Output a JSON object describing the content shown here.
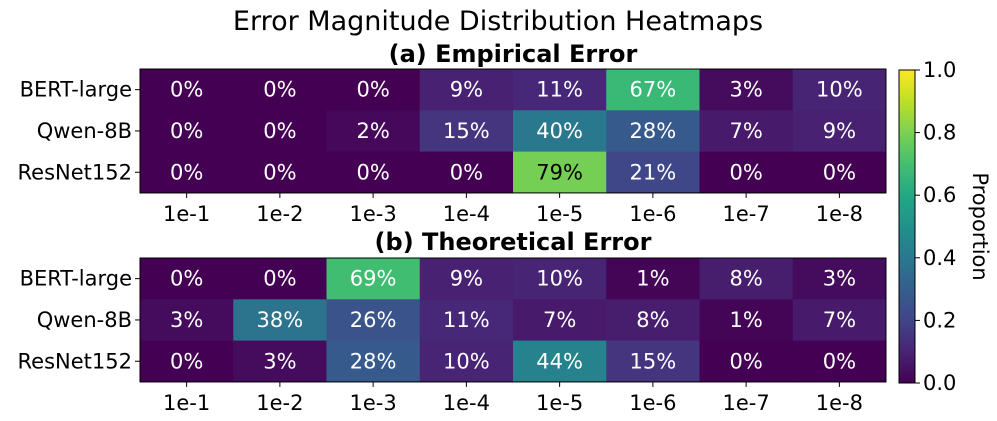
{
  "chart_data": {
    "type": "heatmap",
    "title": "Error Magnitude Distribution Heatmaps",
    "categories": [
      "1e-1",
      "1e-2",
      "1e-3",
      "1e-4",
      "1e-5",
      "1e-6",
      "1e-7",
      "1e-8"
    ],
    "rows": [
      "BERT-large",
      "Qwen-8B",
      "ResNet152"
    ],
    "panels": [
      {
        "title": "(a) Empirical Error",
        "values": [
          [
            0.0,
            0.0,
            0.0,
            0.09,
            0.11,
            0.67,
            0.03,
            0.1
          ],
          [
            0.0,
            0.0,
            0.02,
            0.15,
            0.4,
            0.28,
            0.07,
            0.09
          ],
          [
            0.0,
            0.0,
            0.0,
            0.0,
            0.79,
            0.21,
            0.0,
            0.0
          ]
        ],
        "labels": [
          [
            "0%",
            "0%",
            "0%",
            "9%",
            "11%",
            "67%",
            "3%",
            "10%"
          ],
          [
            "0%",
            "0%",
            "2%",
            "15%",
            "40%",
            "28%",
            "7%",
            "9%"
          ],
          [
            "0%",
            "0%",
            "0%",
            "0%",
            "79%",
            "21%",
            "0%",
            "0%"
          ]
        ]
      },
      {
        "title": "(b) Theoretical Error",
        "values": [
          [
            0.0,
            0.0,
            0.69,
            0.09,
            0.1,
            0.01,
            0.08,
            0.03
          ],
          [
            0.03,
            0.38,
            0.26,
            0.11,
            0.07,
            0.08,
            0.01,
            0.07
          ],
          [
            0.0,
            0.03,
            0.28,
            0.1,
            0.44,
            0.15,
            0.0,
            0.0
          ]
        ],
        "labels": [
          [
            "0%",
            "0%",
            "69%",
            "9%",
            "10%",
            "1%",
            "8%",
            "3%"
          ],
          [
            "3%",
            "38%",
            "26%",
            "11%",
            "7%",
            "8%",
            "1%",
            "7%"
          ],
          [
            "0%",
            "3%",
            "28%",
            "10%",
            "44%",
            "15%",
            "0%",
            "0%"
          ]
        ]
      }
    ],
    "colorbar": {
      "label": "Proportion",
      "range": [
        0.0,
        1.0
      ],
      "ticks": [
        "0.0",
        "0.2",
        "0.4",
        "0.6",
        "0.8",
        "1.0"
      ],
      "colormap": "viridis"
    }
  }
}
